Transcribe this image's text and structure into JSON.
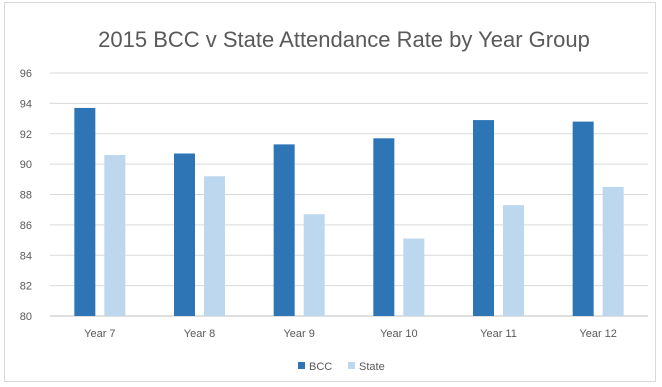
{
  "chart_data": {
    "type": "bar",
    "title": "2015 BCC v State Attendance Rate by Year Group",
    "xlabel": "",
    "ylabel": "",
    "categories": [
      "Year 7",
      "Year 8",
      "Year 9",
      "Year 10",
      "Year 11",
      "Year 12"
    ],
    "series": [
      {
        "name": "BCC",
        "color": "#2e75b6",
        "values": [
          93.7,
          90.7,
          91.3,
          91.7,
          92.9,
          92.8
        ]
      },
      {
        "name": "State",
        "color": "#bdd7ee",
        "values": [
          90.6,
          89.2,
          86.7,
          85.1,
          87.3,
          88.5
        ]
      }
    ],
    "ylim": [
      80,
      96
    ],
    "yticks": [
      80,
      82,
      84,
      86,
      88,
      90,
      92,
      94,
      96
    ],
    "ytick_labels": [
      "80",
      "82",
      "84",
      "86",
      "88",
      "90",
      "92",
      "94",
      "96"
    ],
    "grid": true,
    "legend_position": "bottom"
  }
}
